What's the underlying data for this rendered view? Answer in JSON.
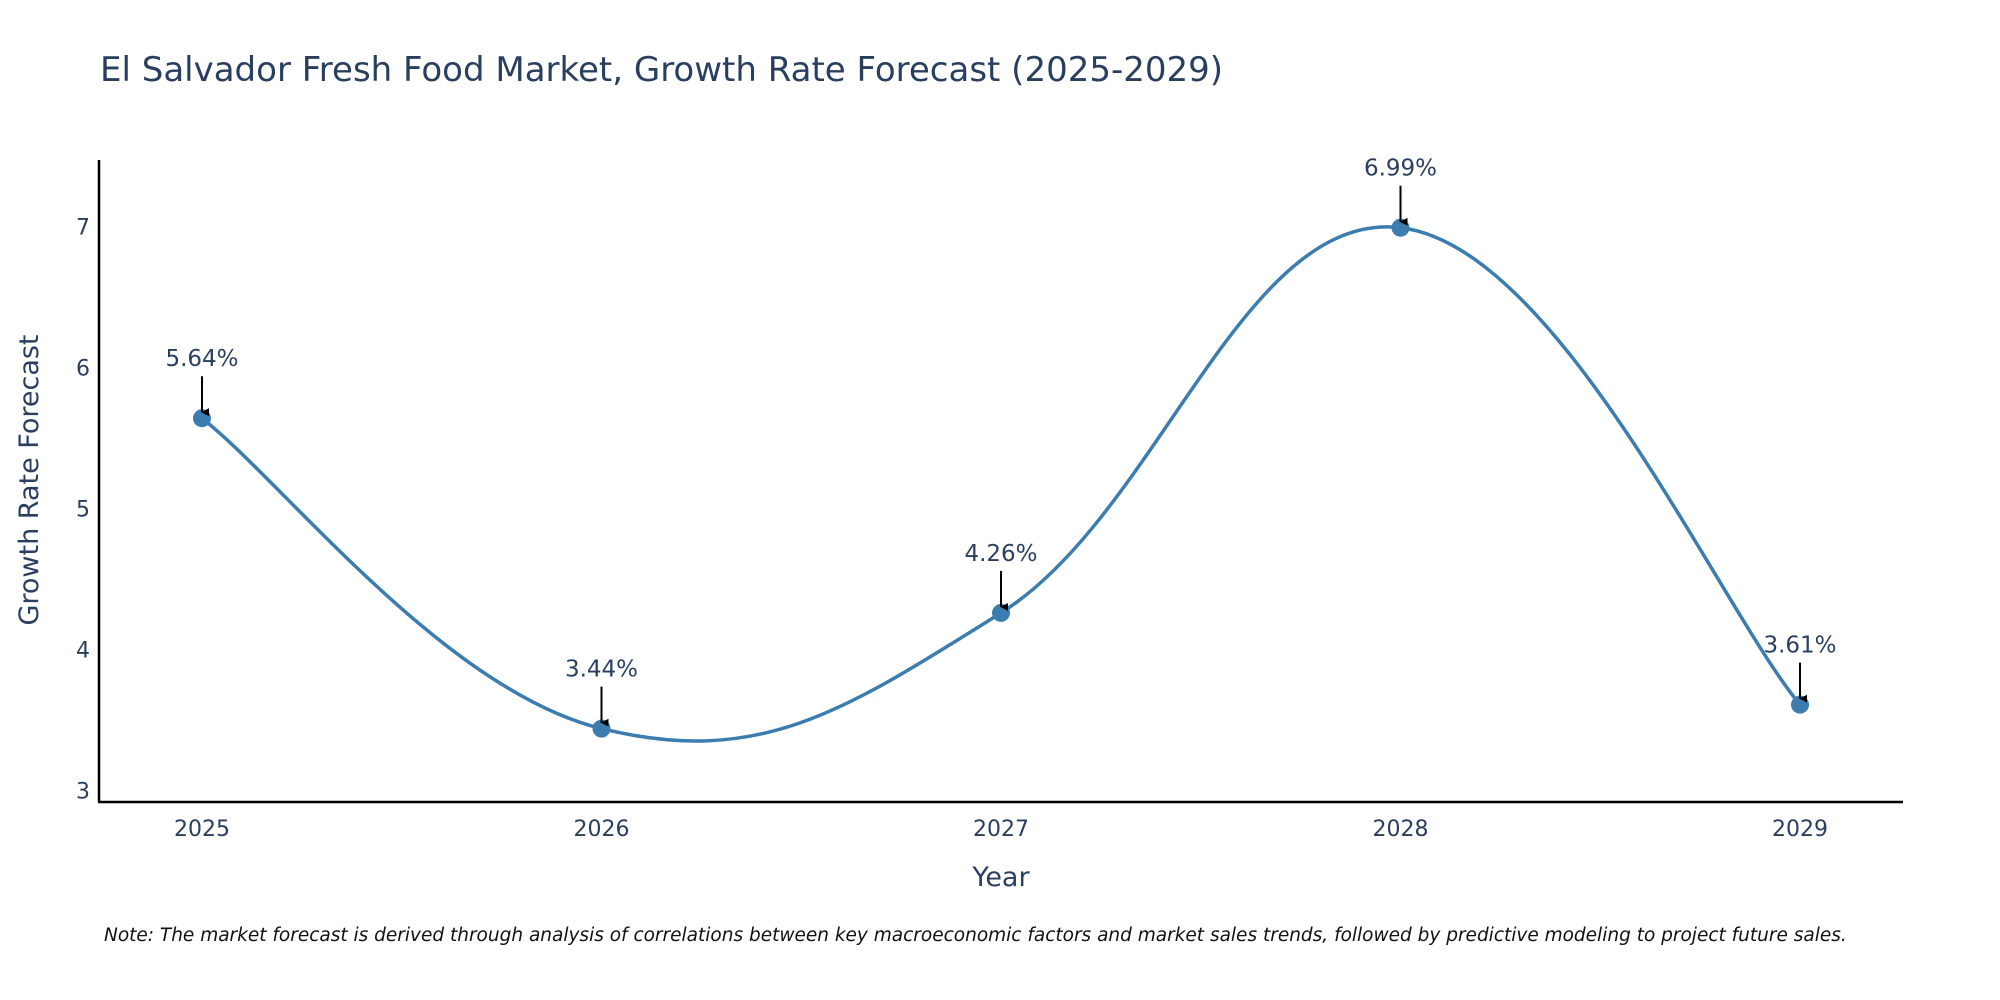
{
  "chart_data": {
    "type": "line",
    "title": "El Salvador Fresh Food Market, Growth Rate Forecast (2025-2029)",
    "xlabel": "Year",
    "ylabel": "Growth Rate Forecast",
    "x": [
      "2025",
      "2026",
      "2027",
      "2028",
      "2029"
    ],
    "values": [
      5.64,
      3.44,
      4.26,
      6.99,
      3.61
    ],
    "data_labels": [
      "5.64%",
      "3.44%",
      "4.26%",
      "6.99%",
      "3.61%"
    ],
    "ylim": [
      2.92,
      7.47
    ],
    "yticks": [
      3,
      4,
      5,
      6,
      7
    ],
    "ytick_labels": [
      "3",
      "4",
      "5",
      "6",
      "7"
    ],
    "line_shape": "spline",
    "grid": false,
    "colors": {
      "line": "#3a7dae",
      "marker": "#3a7dae",
      "text": "#2a3f5f",
      "axis": "#000000",
      "arrow": "#000000"
    },
    "note": "Note: The market forecast is derived through analysis of correlations between key macroeconomic factors and market sales trends, followed by predictive modeling to project future sales."
  }
}
